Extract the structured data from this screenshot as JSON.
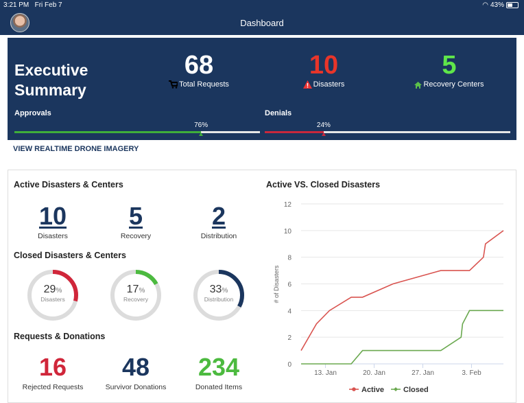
{
  "status_bar": {
    "time": "3:21 PM",
    "date": "Fri Feb 7",
    "battery": "43%",
    "battery_level": 0.43
  },
  "header": {
    "title": "Dashboard"
  },
  "executive": {
    "title_line1": "Executive",
    "title_line2": "Summary",
    "stats": [
      {
        "value": "68",
        "label": "Total Requests",
        "icon": "cart-icon",
        "color": "#ffffff"
      },
      {
        "value": "10",
        "label": "Disasters",
        "icon": "warning-icon",
        "color": "#e8352a"
      },
      {
        "value": "5",
        "label": "Recovery Centers",
        "icon": "house-icon",
        "color": "#5fe64a"
      }
    ],
    "approvals": {
      "label": "Approvals",
      "percent_label": "76%",
      "value": 76,
      "color": "#3fae3a"
    },
    "denials": {
      "label": "Denials",
      "percent_label": "24%",
      "value": 24,
      "color": "#c8283c"
    }
  },
  "drone_link": "VIEW REALTIME DRONE IMAGERY",
  "active": {
    "heading": "Active Disasters & Centers",
    "items": [
      {
        "value": "10",
        "label": "Disasters"
      },
      {
        "value": "5",
        "label": "Recovery"
      },
      {
        "value": "2",
        "label": "Distribution"
      }
    ]
  },
  "closed": {
    "heading": "Closed Disasters & Centers",
    "items": [
      {
        "value": "29",
        "unit": "%",
        "label": "Disasters",
        "percent": 29,
        "color": "#d0263a"
      },
      {
        "value": "17",
        "unit": "%",
        "label": "Recovery",
        "percent": 17,
        "color": "#4cba3f"
      },
      {
        "value": "33",
        "unit": "%",
        "label": "Distribution",
        "percent": 33,
        "color": "#1b365e"
      }
    ]
  },
  "requests": {
    "heading": "Requests & Donations",
    "items": [
      {
        "value": "16",
        "label": "Rejected Requests",
        "color": "#d0263a"
      },
      {
        "value": "48",
        "label": "Survivor Donations",
        "color": "#1b365e"
      },
      {
        "value": "234",
        "label": "Donated Items",
        "color": "#4cba3f"
      }
    ]
  },
  "chart_data": {
    "type": "line",
    "title": "Active VS. Closed Disasters",
    "ylabel": "# of Disasters",
    "xlabel": "",
    "ylim": [
      0,
      12
    ],
    "yticks": [
      "0",
      "2",
      "4",
      "6",
      "8",
      "10",
      "12"
    ],
    "xticks": [
      {
        "date": "2020-01-13",
        "label": "13. Jan"
      },
      {
        "date": "2020-01-20",
        "label": "20. Jan"
      },
      {
        "date": "2020-01-27",
        "label": "27. Jan"
      },
      {
        "date": "2020-02-03",
        "label": "3. Feb"
      }
    ],
    "xlim": [
      "2020-01-09T12:00",
      "2020-02-07T14:00"
    ],
    "grid": true,
    "legend": "bottom",
    "series": [
      {
        "name": "Active",
        "color": "#d9534f",
        "points": [
          [
            "2020-01-09T12:00",
            1
          ],
          [
            "2020-01-11T17:00",
            3
          ],
          [
            "2020-01-13T14:00",
            4
          ],
          [
            "2020-01-16T17:00",
            5
          ],
          [
            "2020-01-18T08:00",
            5
          ],
          [
            "2020-01-22T17:00",
            6
          ],
          [
            "2020-01-29T14:00",
            7
          ],
          [
            "2020-02-02T17:00",
            7
          ],
          [
            "2020-02-04T17:00",
            8
          ],
          [
            "2020-02-05T00:00",
            9
          ],
          [
            "2020-02-07T14:00",
            10
          ]
        ]
      },
      {
        "name": "Closed",
        "color": "#6aa84f",
        "points": [
          [
            "2020-01-09T12:00",
            0
          ],
          [
            "2020-01-16T17:00",
            0
          ],
          [
            "2020-01-18T08:00",
            1
          ],
          [
            "2020-01-29T14:00",
            1
          ],
          [
            "2020-02-01T12:00",
            2
          ],
          [
            "2020-02-01T17:00",
            3
          ],
          [
            "2020-02-02T17:00",
            4
          ],
          [
            "2020-02-07T14:00",
            4
          ]
        ]
      }
    ]
  }
}
